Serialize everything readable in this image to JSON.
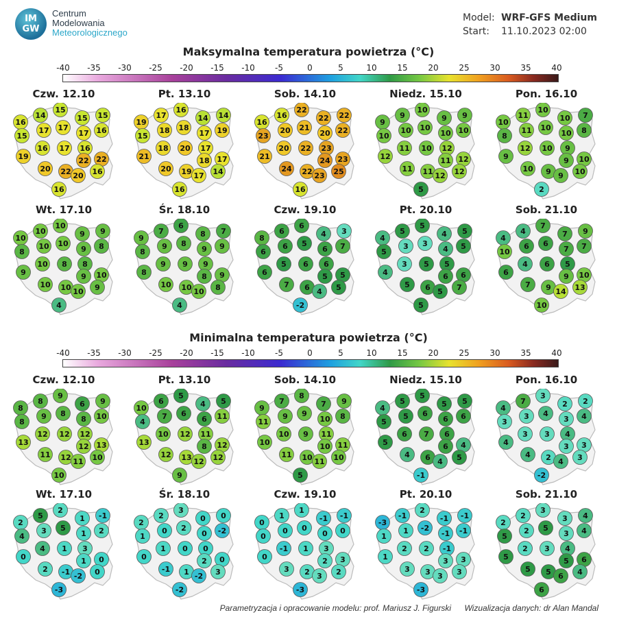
{
  "header": {
    "logo_badge_top": "IM",
    "logo_badge_bottom": "GW",
    "org_line1": "Centrum",
    "org_line2": "Modelowania",
    "org_line3": "Meteorologicznego",
    "model_label": "Model:",
    "model_value": "WRF-GFS Medium",
    "start_label": "Start:",
    "start_value": "11.10.2023 02:00"
  },
  "colors": {
    "map_fill": "#f2f2f2",
    "map_border": "#bbbbbb",
    "circle_stroke": "#555555"
  },
  "scale_ticks": [
    "-40",
    "-35",
    "-30",
    "-25",
    "-20",
    "-15",
    "-10",
    "-5",
    "0",
    "5",
    "10",
    "15",
    "20",
    "25",
    "30",
    "35",
    "40"
  ],
  "max_section": {
    "title": "Maksymalna temperatura powietrza (°C)",
    "panels": [
      {
        "date": "Czw. 12.10",
        "values": [
          14,
          15,
          15,
          15,
          16,
          17,
          17,
          17,
          16,
          15,
          16,
          17,
          16,
          19,
          20,
          22,
          22,
          22,
          20,
          16,
          16
        ]
      },
      {
        "date": "Pt. 13.10",
        "values": [
          17,
          16,
          14,
          14,
          19,
          18,
          18,
          17,
          19,
          15,
          18,
          20,
          17,
          21,
          20,
          19,
          18,
          17,
          17,
          14,
          16
        ]
      },
      {
        "date": "Sob. 14.10",
        "values": [
          16,
          22,
          22,
          22,
          16,
          20,
          21,
          20,
          22,
          23,
          20,
          22,
          23,
          21,
          24,
          22,
          24,
          23,
          23,
          25,
          16
        ]
      },
      {
        "date": "Niedz. 15.10",
        "values": [
          9,
          10,
          9,
          9,
          9,
          10,
          10,
          10,
          10,
          10,
          11,
          10,
          12,
          12,
          11,
          11,
          11,
          12,
          12,
          12,
          5
        ]
      },
      {
        "date": "Pon. 16.10",
        "values": [
          11,
          10,
          10,
          7,
          10,
          11,
          10,
          10,
          8,
          8,
          12,
          10,
          9,
          9,
          10,
          9,
          9,
          10,
          9,
          10,
          2
        ]
      },
      {
        "date": "Wt. 17.10",
        "values": [
          10,
          10,
          9,
          9,
          10,
          10,
          10,
          9,
          8,
          8,
          10,
          8,
          8,
          9,
          10,
          10,
          9,
          10,
          10,
          9,
          4
        ]
      },
      {
        "date": "Śr. 18.10",
        "values": [
          7,
          6,
          8,
          7,
          9,
          9,
          8,
          9,
          9,
          8,
          9,
          9,
          9,
          8,
          10,
          10,
          8,
          9,
          10,
          8,
          4
        ]
      },
      {
        "date": "Czw. 19.10",
        "values": [
          6,
          6,
          4,
          3,
          8,
          6,
          5,
          6,
          7,
          6,
          5,
          6,
          6,
          6,
          7,
          6,
          5,
          5,
          4,
          5,
          -2
        ]
      },
      {
        "date": "Pt. 20.10",
        "values": [
          5,
          5,
          4,
          5,
          4,
          3,
          3,
          4,
          5,
          5,
          3,
          5,
          5,
          4,
          5,
          6,
          6,
          6,
          5,
          7,
          5
        ]
      },
      {
        "date": "Sob. 21.10",
        "values": [
          4,
          7,
          7,
          9,
          4,
          6,
          6,
          7,
          7,
          10,
          4,
          6,
          5,
          6,
          7,
          9,
          9,
          10,
          14,
          13,
          10
        ]
      }
    ]
  },
  "min_section": {
    "title": "Minimalna temperatura powietrza (°C)",
    "panels": [
      {
        "date": "Czw. 12.10",
        "values": [
          8,
          9,
          6,
          9,
          8,
          9,
          8,
          8,
          10,
          8,
          12,
          12,
          12,
          13,
          11,
          12,
          12,
          13,
          11,
          10,
          10
        ]
      },
      {
        "date": "Pt. 13.10",
        "values": [
          6,
          5,
          4,
          5,
          10,
          7,
          6,
          6,
          11,
          4,
          10,
          12,
          11,
          13,
          12,
          13,
          8,
          12,
          12,
          12,
          9
        ]
      },
      {
        "date": "Sob. 14.10",
        "values": [
          7,
          8,
          7,
          9,
          9,
          9,
          9,
          10,
          8,
          11,
          10,
          9,
          11,
          10,
          11,
          10,
          10,
          11,
          11,
          10,
          5
        ]
      },
      {
        "date": "Niedz. 15.10",
        "values": [
          5,
          5,
          5,
          5,
          4,
          5,
          6,
          6,
          6,
          5,
          6,
          7,
          6,
          5,
          4,
          6,
          6,
          4,
          4,
          5,
          -1
        ]
      },
      {
        "date": "Pon. 16.10",
        "values": [
          7,
          3,
          2,
          2,
          4,
          3,
          4,
          3,
          4,
          3,
          3,
          3,
          4,
          4,
          4,
          2,
          3,
          3,
          4,
          3,
          -2
        ]
      },
      {
        "date": "Wt. 17.10",
        "values": [
          5,
          2,
          1,
          -1,
          2,
          3,
          5,
          1,
          2,
          4,
          4,
          1,
          3,
          0,
          2,
          -1,
          1,
          0,
          -2,
          0,
          -3
        ]
      },
      {
        "date": "Śr. 18.10",
        "values": [
          2,
          3,
          0,
          0,
          2,
          0,
          2,
          0,
          -2,
          1,
          1,
          0,
          0,
          0,
          -1,
          1,
          2,
          0,
          -2,
          3,
          -2
        ]
      },
      {
        "date": "Czw. 19.10",
        "values": [
          1,
          1,
          -1,
          -1,
          0,
          0,
          0,
          0,
          0,
          0,
          -1,
          1,
          3,
          0,
          3,
          2,
          2,
          3,
          3,
          2,
          -3
        ]
      },
      {
        "date": "Pt. 20.10",
        "values": [
          -1,
          2,
          -1,
          -1,
          -3,
          1,
          -2,
          -1,
          -1,
          1,
          2,
          2,
          -1,
          1,
          3,
          3,
          3,
          3,
          3,
          3,
          -3
        ]
      },
      {
        "date": "Sob. 21.10",
        "values": [
          2,
          3,
          3,
          4,
          2,
          2,
          5,
          3,
          4,
          5,
          2,
          3,
          4,
          5,
          5,
          5,
          5,
          6,
          6,
          4,
          6
        ]
      }
    ]
  },
  "footer": {
    "credit_model": "Parametryzacja i opracowanie modelu: prof. Mariusz J. Figurski",
    "credit_vis": "Wizualizacja danych: dr Alan Mandal"
  }
}
